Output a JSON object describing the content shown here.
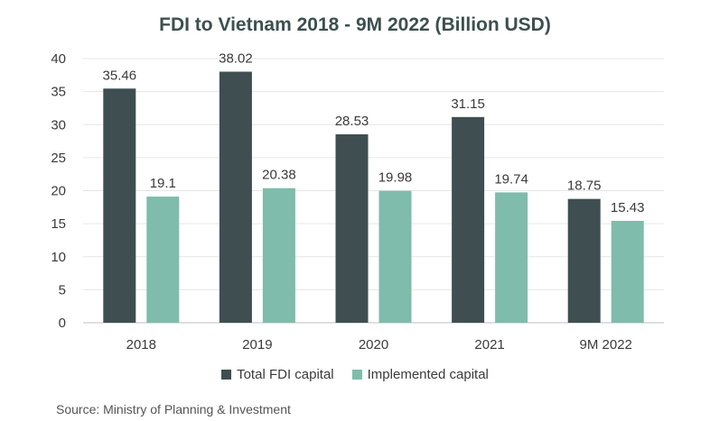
{
  "chart_data": {
    "type": "bar",
    "title": "FDI to Vietnam 2018 - 9M 2022 (Billion USD)",
    "categories": [
      "2018",
      "2019",
      "2020",
      "2021",
      "9M 2022"
    ],
    "series": [
      {
        "name": "Total FDI capital",
        "color": "#3f4e50",
        "values": [
          35.46,
          38.02,
          28.53,
          31.15,
          18.75
        ]
      },
      {
        "name": "Implemented capital",
        "color": "#7fbcab",
        "values": [
          19.1,
          20.38,
          19.98,
          19.74,
          15.43
        ]
      }
    ],
    "value_labels": [
      [
        "35.46",
        "38.02",
        "28.53",
        "31.15",
        "18.75"
      ],
      [
        "19.1",
        "20.38",
        "19.98",
        "19.74",
        "15.43"
      ]
    ],
    "y_ticks": [
      0,
      5,
      10,
      15,
      20,
      25,
      30,
      35,
      40
    ],
    "ylim": [
      0,
      40
    ],
    "grid": true,
    "legend_position": "bottom",
    "source": "Source: Ministry of Planning & Investment"
  }
}
